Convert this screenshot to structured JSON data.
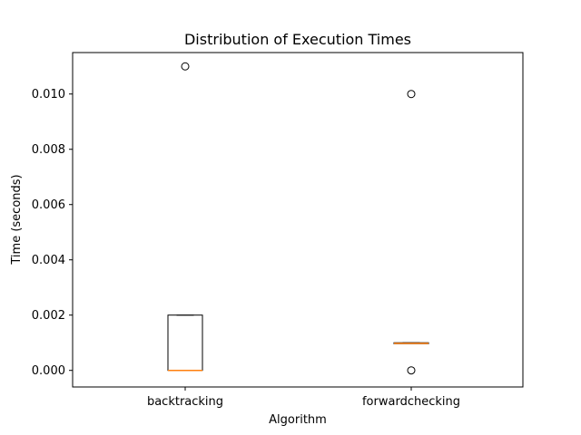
{
  "chart_data": {
    "type": "box",
    "title": "Distribution of Execution Times",
    "xlabel": "Algorithm",
    "ylabel": "Time (seconds)",
    "categories": [
      "backtracking",
      "forwardchecking"
    ],
    "ylim": [
      -0.0006,
      0.0115
    ],
    "yticks": [
      "0.000",
      "0.002",
      "0.004",
      "0.006",
      "0.008",
      "0.010"
    ],
    "boxes": [
      {
        "name": "backtracking",
        "q1": 0.0,
        "median": 0.0,
        "q3": 0.002,
        "whisker_low": 0.0,
        "whisker_high": 0.002,
        "outliers": [
          0.011
        ]
      },
      {
        "name": "forwardchecking",
        "q1": 0.00098,
        "median": 0.00098,
        "q3": 0.001,
        "whisker_low": 0.00098,
        "whisker_high": 0.001,
        "outliers": [
          0.01,
          0.0
        ]
      }
    ],
    "colors": {
      "box": "#000000",
      "median": "#ff7f0e",
      "outlier_edge": "#000000"
    },
    "grid": false,
    "legend": "none"
  }
}
